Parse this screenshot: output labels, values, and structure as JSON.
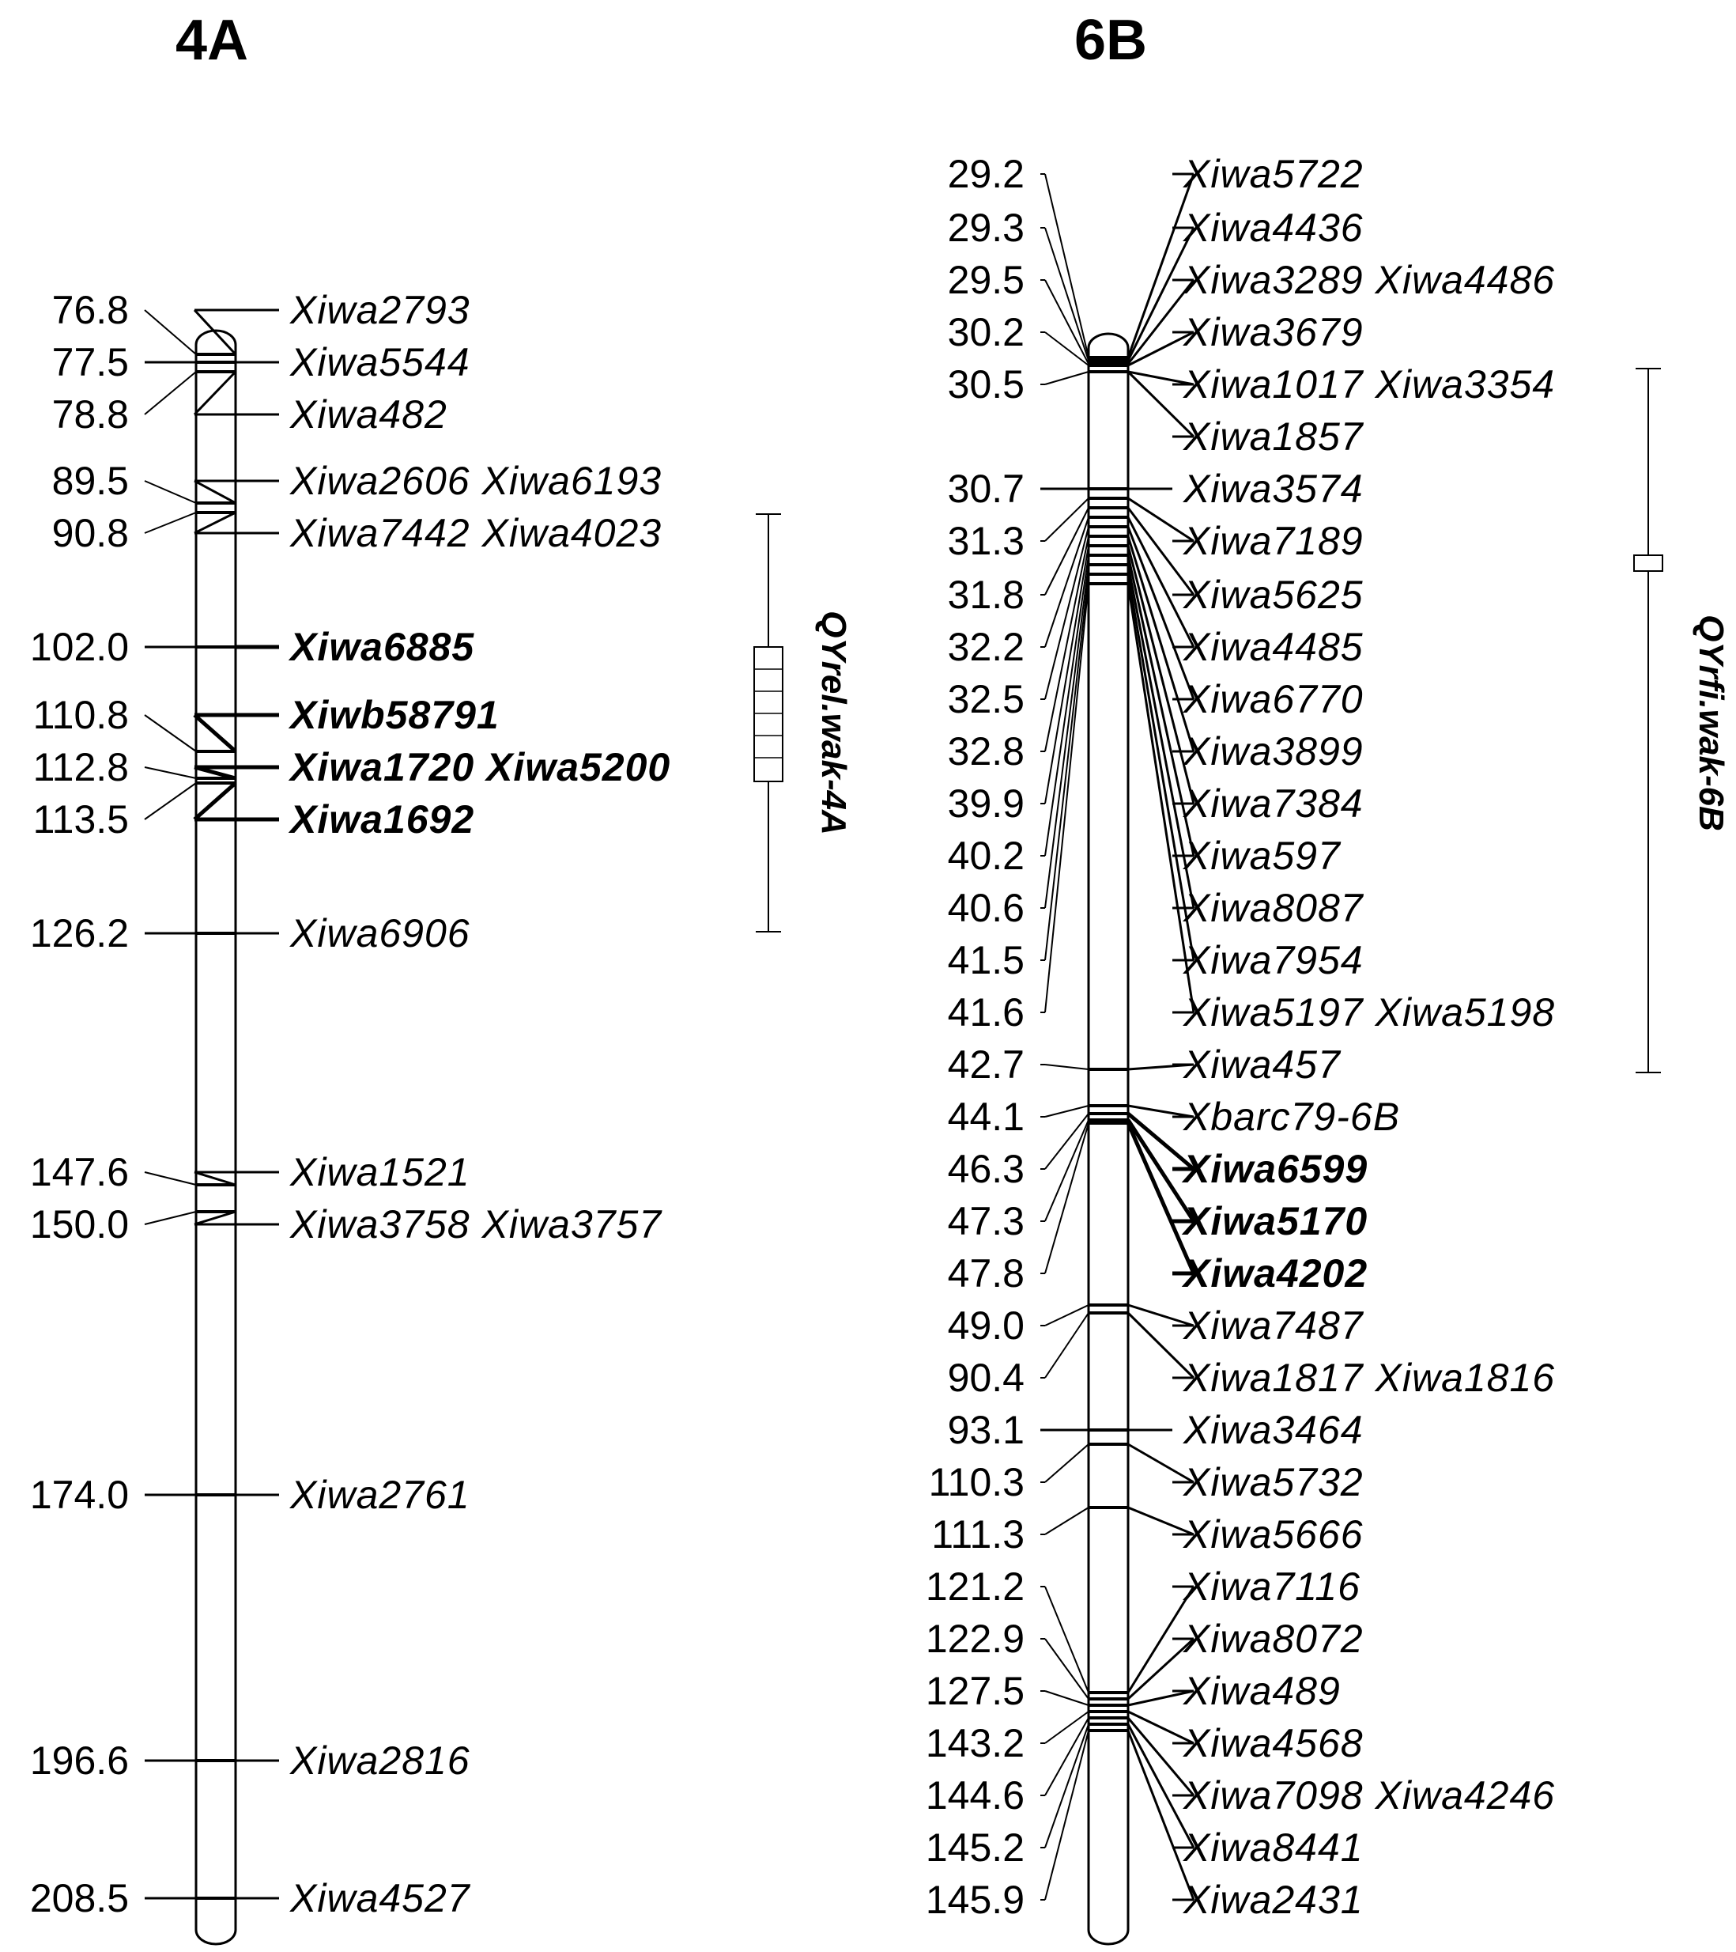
{
  "linkage_groups": [
    {
      "title": "4A",
      "qtl": {
        "label": "QYrel.wak-4A",
        "start": 90.8,
        "end": 126.2,
        "peak_start": 102.0,
        "peak_end": 112.8
      },
      "markers": [
        {
          "pos": "76.8",
          "names": "Xiwa2793",
          "bold": false
        },
        {
          "pos": "77.5",
          "names": "Xiwa5544",
          "bold": false
        },
        {
          "pos": "78.8",
          "names": "Xiwa482",
          "bold": false
        },
        {
          "pos": "89.5",
          "names": "Xiwa2606 Xiwa6193",
          "bold": false
        },
        {
          "pos": "90.8",
          "names": "Xiwa7442 Xiwa4023",
          "bold": false
        },
        {
          "pos": "102.0",
          "names": "Xiwa6885",
          "bold": true
        },
        {
          "pos": "110.8",
          "names": "Xiwb58791",
          "bold": true
        },
        {
          "pos": "112.8",
          "names": "Xiwa1720 Xiwa5200",
          "bold": true
        },
        {
          "pos": "113.5",
          "names": "Xiwa1692",
          "bold": true
        },
        {
          "pos": "126.2",
          "names": "Xiwa6906",
          "bold": false
        },
        {
          "pos": "147.6",
          "names": "Xiwa1521",
          "bold": false
        },
        {
          "pos": "150.0",
          "names": "Xiwa3758 Xiwa3757",
          "bold": false
        },
        {
          "pos": "174.0",
          "names": "Xiwa2761",
          "bold": false
        },
        {
          "pos": "196.6",
          "names": "Xiwa2816",
          "bold": false
        },
        {
          "pos": "208.5",
          "names": "Xiwa4527",
          "bold": false
        }
      ]
    },
    {
      "title": "6B",
      "qtl": {
        "label": "QYrfi.wak-6B",
        "start": 30.5,
        "end": 42.7,
        "peak": 31.3
      },
      "markers": [
        {
          "pos": "29.2",
          "names": "Xiwa5722",
          "bold": false
        },
        {
          "pos": "29.3",
          "names": "Xiwa4436",
          "bold": false
        },
        {
          "pos": "29.5",
          "names": "Xiwa3289 Xiwa4486",
          "bold": false
        },
        {
          "pos": "30.2",
          "names": "Xiwa3679",
          "bold": false
        },
        {
          "pos": "30.5",
          "names": "Xiwa1017 Xiwa3354",
          "bold": false
        },
        {
          "pos": "",
          "names": "Xiwa1857",
          "bold": false
        },
        {
          "pos": "30.7",
          "names": "Xiwa3574",
          "bold": false
        },
        {
          "pos": "31.3",
          "names": "Xiwa7189",
          "bold": false
        },
        {
          "pos": "31.8",
          "names": "Xiwa5625",
          "bold": false
        },
        {
          "pos": "32.2",
          "names": "Xiwa4485",
          "bold": false
        },
        {
          "pos": "32.5",
          "names": "Xiwa6770",
          "bold": false
        },
        {
          "pos": "32.8",
          "names": "Xiwa3899",
          "bold": false
        },
        {
          "pos": "39.9",
          "names": "Xiwa7384",
          "bold": false
        },
        {
          "pos": "40.2",
          "names": "Xiwa597",
          "bold": false
        },
        {
          "pos": "40.6",
          "names": "Xiwa8087",
          "bold": false
        },
        {
          "pos": "41.5",
          "names": "Xiwa7954",
          "bold": false
        },
        {
          "pos": "41.6",
          "names": "Xiwa5197 Xiwa5198",
          "bold": false
        },
        {
          "pos": "42.7",
          "names": "Xiwa457",
          "bold": false
        },
        {
          "pos": "44.1",
          "names": "Xbarc79-6B",
          "bold": false
        },
        {
          "pos": "46.3",
          "names": "Xiwa6599",
          "bold": true
        },
        {
          "pos": "47.3",
          "names": "Xiwa5170",
          "bold": true
        },
        {
          "pos": "47.8",
          "names": "Xiwa4202",
          "bold": true
        },
        {
          "pos": "49.0",
          "names": "Xiwa7487",
          "bold": false
        },
        {
          "pos": "90.4",
          "names": "Xiwa1817 Xiwa1816",
          "bold": false
        },
        {
          "pos": "93.1",
          "names": "Xiwa3464",
          "bold": false
        },
        {
          "pos": "110.3",
          "names": "Xiwa5732",
          "bold": false
        },
        {
          "pos": "111.3",
          "names": "Xiwa5666",
          "bold": false
        },
        {
          "pos": "121.2",
          "names": "Xiwa7116",
          "bold": false
        },
        {
          "pos": "122.9",
          "names": "Xiwa8072",
          "bold": false
        },
        {
          "pos": "127.5",
          "names": "Xiwa489",
          "bold": false
        },
        {
          "pos": "143.2",
          "names": "Xiwa4568",
          "bold": false
        },
        {
          "pos": "144.6",
          "names": "Xiwa7098 Xiwa4246",
          "bold": false
        },
        {
          "pos": "145.2",
          "names": "Xiwa8441",
          "bold": false
        },
        {
          "pos": "145.9",
          "names": "Xiwa2431",
          "bold": false
        }
      ]
    }
  ]
}
